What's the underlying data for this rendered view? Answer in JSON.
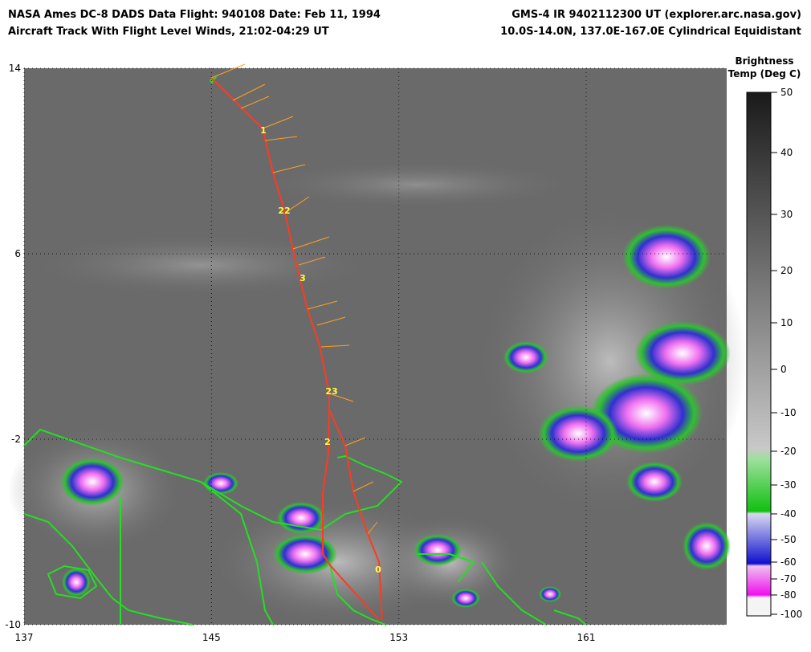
{
  "header": {
    "left": [
      "NASA Ames DC-8 DADS Data  Flight: 940108  Date: Feb 11, 1994",
      "Aircraft Track With Flight Level Winds, 21:02-04:29 UT"
    ],
    "right": [
      "GMS-4 IR 9402112300 UT (explorer.arc.nasa.gov)",
      "10.0S-14.0N, 137.0E-167.0E Cylindrical Equidistant"
    ]
  },
  "map": {
    "lon_range": [
      137,
      167
    ],
    "lat_range": [
      -10,
      14
    ],
    "lon_ticks": [
      137,
      145,
      153,
      161
    ],
    "lat_ticks": [
      14,
      6,
      -2,
      -10
    ]
  },
  "track_hours": [
    "1",
    "22",
    "3",
    "23",
    "2",
    "0"
  ],
  "colorbar": {
    "title": [
      "Brightness",
      "Temp (Deg C)"
    ],
    "ticks": [
      50,
      40,
      30,
      20,
      10,
      0,
      -10,
      -20,
      -30,
      -40,
      -50,
      -60,
      -70,
      -80,
      -100
    ]
  }
}
